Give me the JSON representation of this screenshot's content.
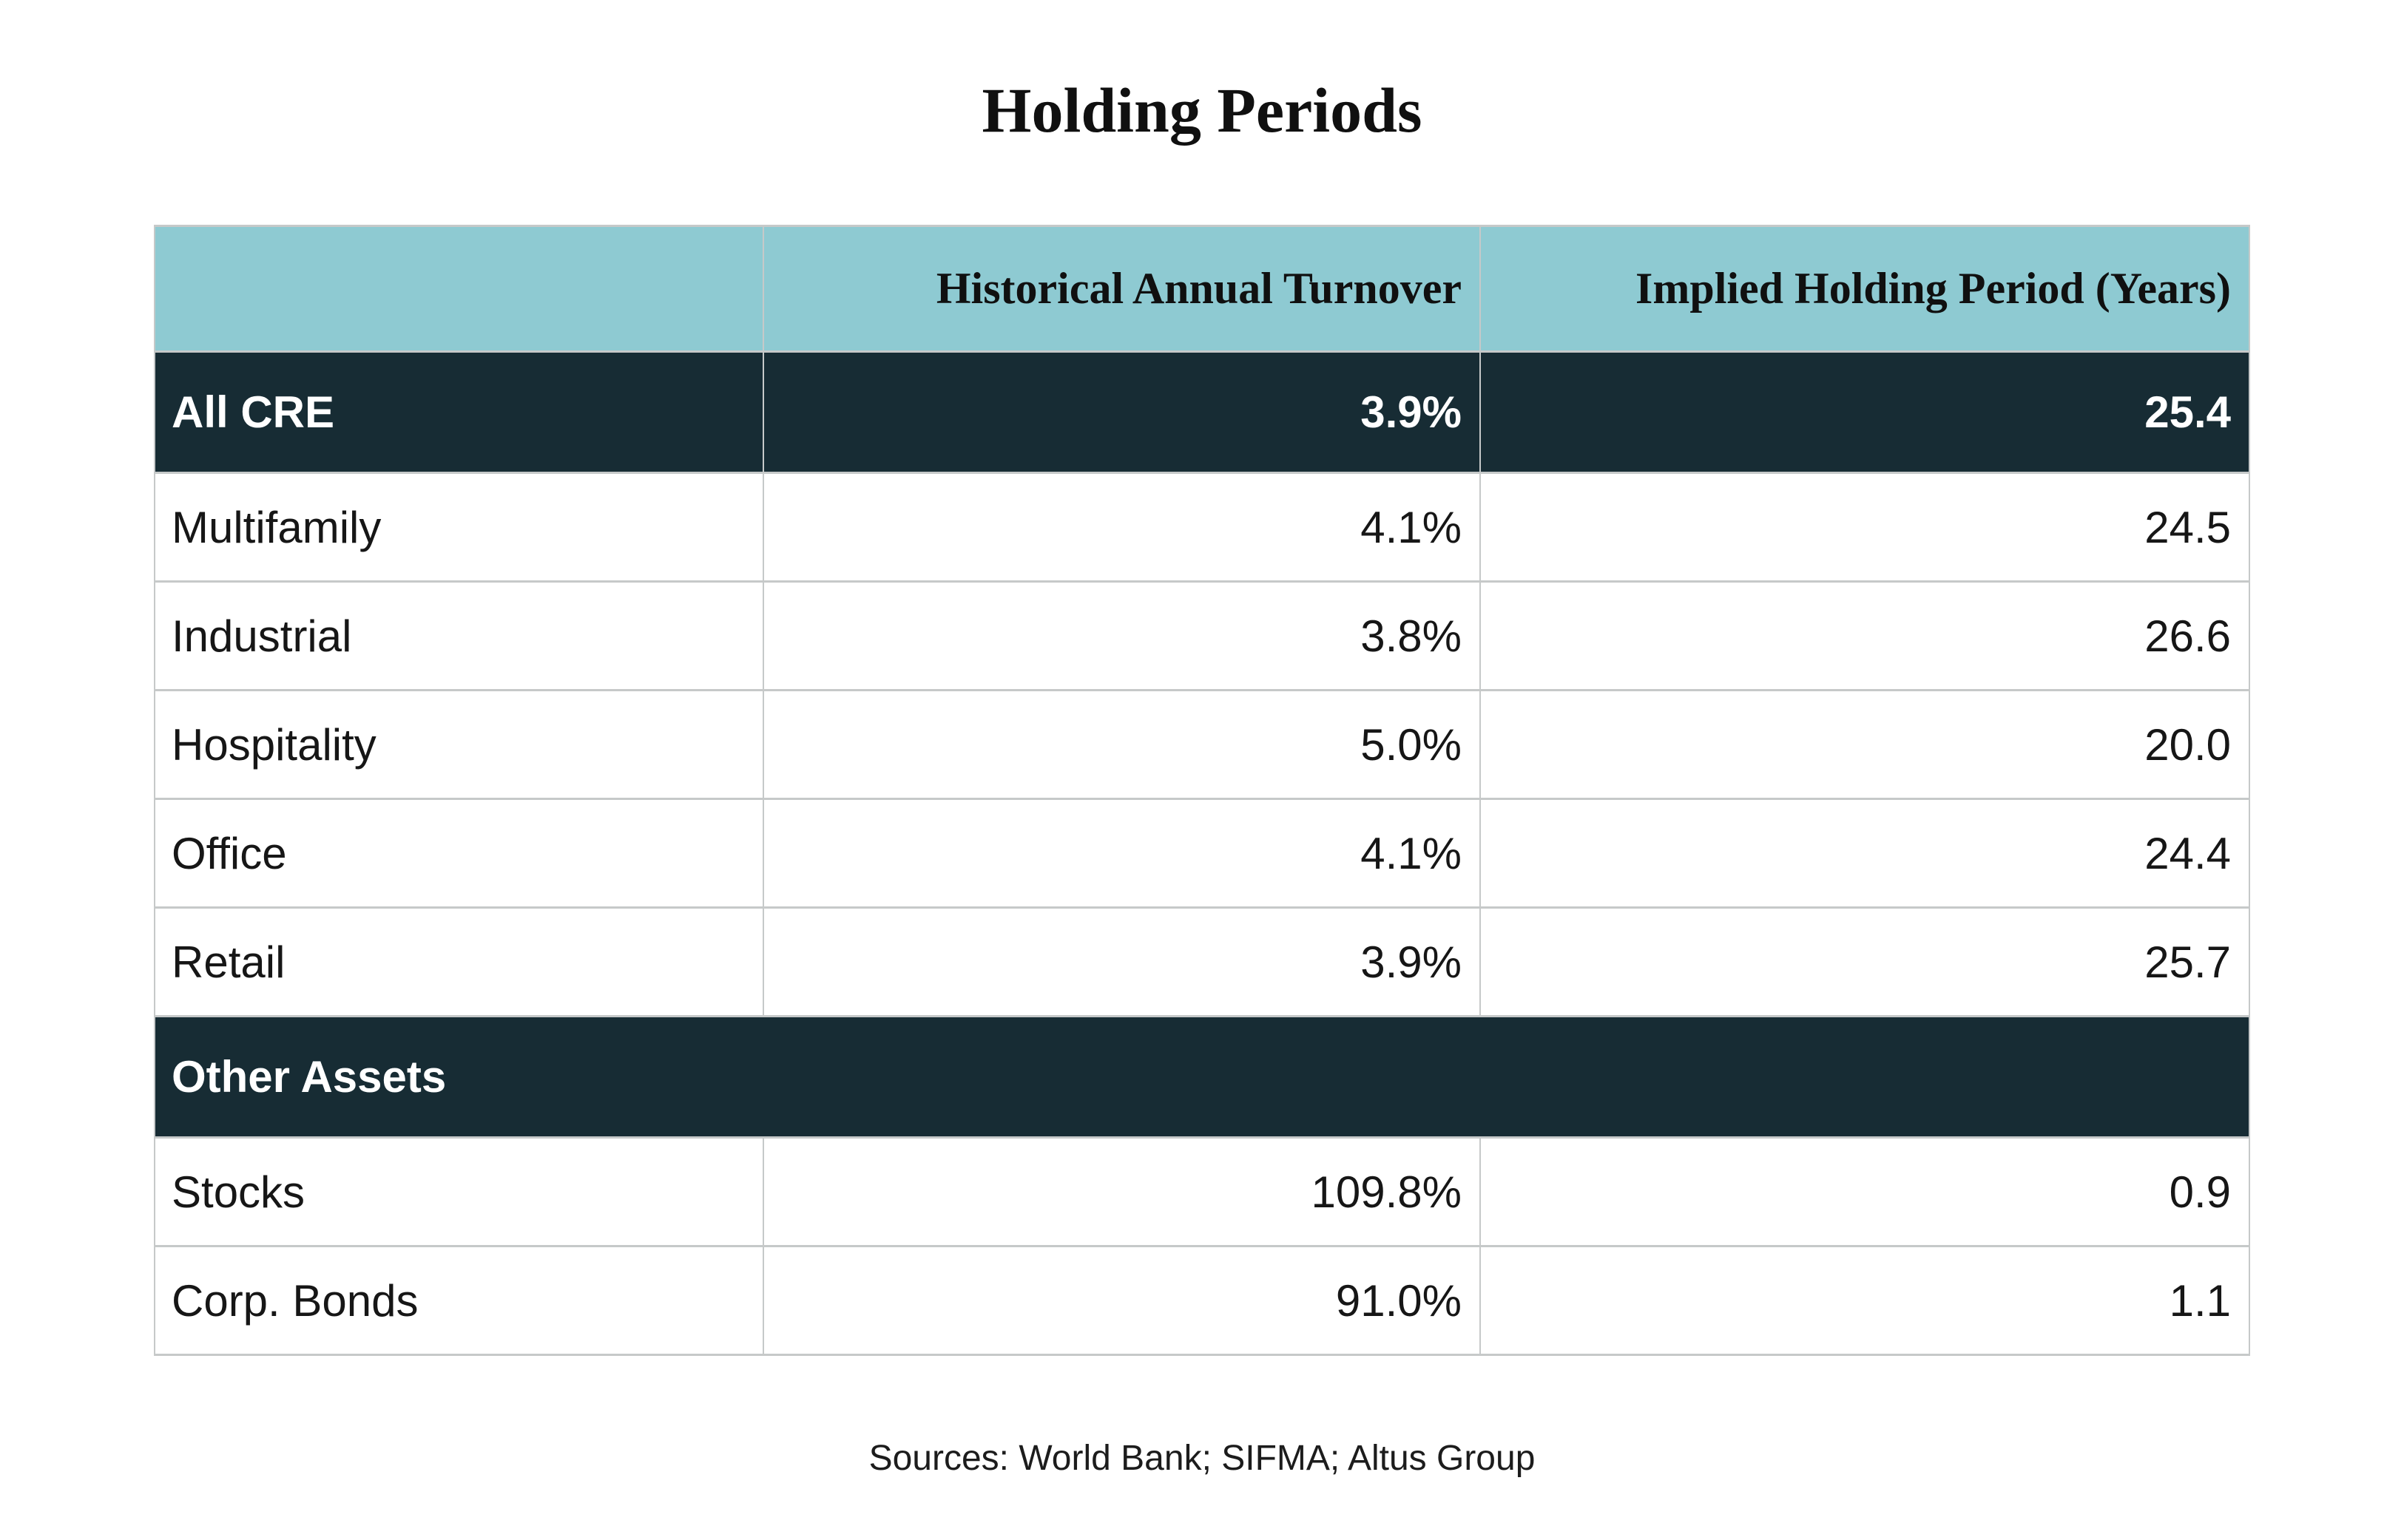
{
  "chart_data": {
    "type": "table",
    "title": "Holding Periods",
    "columns": {
      "label": "",
      "turnover": "Historical Annual Turnover",
      "holding": "Implied Holding Period (Years)"
    },
    "rows": [
      {
        "label": "All CRE",
        "turnover": "3.9%",
        "holding": "25.4",
        "row_style": "dark"
      },
      {
        "label": "Multifamily",
        "turnover": "4.1%",
        "holding": "24.5",
        "row_style": "light"
      },
      {
        "label": "Industrial",
        "turnover": "3.8%",
        "holding": "26.6",
        "row_style": "light"
      },
      {
        "label": "Hospitality",
        "turnover": "5.0%",
        "holding": "20.0",
        "row_style": "light"
      },
      {
        "label": "Office",
        "turnover": "4.1%",
        "holding": "24.4",
        "row_style": "light"
      },
      {
        "label": "Retail",
        "turnover": "3.9%",
        "holding": "25.7",
        "row_style": "light"
      },
      {
        "label": "Other Assets",
        "turnover": "",
        "holding": "",
        "row_style": "section"
      },
      {
        "label": "Stocks",
        "turnover": "109.8%",
        "holding": "0.9",
        "row_style": "light"
      },
      {
        "label": "Corp. Bonds",
        "turnover": "91.0%",
        "holding": "1.1",
        "row_style": "light"
      }
    ],
    "source_note": "Sources: World Bank; SIFMA; Altus Group",
    "layout": {
      "legend": false,
      "grid": true,
      "header_alignment": "right",
      "value_alignment": "right"
    }
  },
  "colors": {
    "header_bg": "#8ECAD2",
    "dark_row_bg": "#172C34",
    "dark_row_text": "#FFFFFF",
    "body_text": "#161616",
    "grid_line": "#C6C9C9",
    "page_bg": "#FFFFFF"
  }
}
